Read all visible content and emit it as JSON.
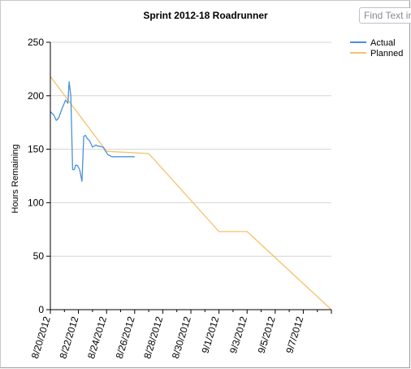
{
  "search": {
    "placeholder": "Find Text in"
  },
  "chart_data": {
    "type": "line",
    "title": "Sprint 2012-18 Roadrunner",
    "xlabel": "",
    "ylabel": "Hours Remaining",
    "ylim": [
      0,
      250
    ],
    "yticks": [
      0,
      50,
      100,
      150,
      200,
      250
    ],
    "xlim": [
      "2012-08-20",
      "2012-09-09"
    ],
    "xtick_labels": [
      "8/20/2012",
      "8/22/2012",
      "8/24/2012",
      "8/26/2012",
      "8/28/2012",
      "8/30/2012",
      "9/1/2012",
      "9/3/2012",
      "9/5/2012",
      "9/7/2012"
    ],
    "grid": "horizontal",
    "legend_position": "top-right",
    "colors": {
      "Actual": "#4a90d9",
      "Planned": "#f5c26b",
      "grid": "#d4d4d4",
      "axis": "#000000"
    },
    "series": [
      {
        "name": "Actual",
        "x": [
          "2012-08-20 00:00",
          "2012-08-20 06:00",
          "2012-08-20 10:00",
          "2012-08-20 14:00",
          "2012-08-20 20:00",
          "2012-08-21 02:00",
          "2012-08-21 06:00",
          "2012-08-21 08:00",
          "2012-08-21 11:00",
          "2012-08-21 14:00",
          "2012-08-21 16:00",
          "2012-08-21 17:00",
          "2012-08-21 19:00",
          "2012-08-21 22:00",
          "2012-08-22 02:00",
          "2012-08-22 06:00",
          "2012-08-22 09:00",
          "2012-08-22 12:00",
          "2012-08-22 14:00",
          "2012-08-22 15:00",
          "2012-08-22 19:00",
          "2012-08-23 00:00",
          "2012-08-23 06:00",
          "2012-08-23 08:00",
          "2012-08-23 10:00",
          "2012-08-23 11:00",
          "2012-08-23 18:00",
          "2012-08-24 02:00",
          "2012-08-24 09:00",
          "2012-08-24 14:00",
          "2012-08-24 16:00",
          "2012-08-24 18:00",
          "2012-08-25 02:00",
          "2012-08-25 12:00",
          "2012-08-26 00:00"
        ],
        "y": [
          185,
          182,
          177,
          179,
          188,
          196,
          193,
          213,
          200,
          131,
          131,
          131,
          135,
          135,
          131,
          120,
          162,
          163,
          161,
          160,
          158,
          152,
          154,
          153,
          153,
          153,
          152,
          145,
          143,
          143,
          143,
          143,
          143,
          143,
          143
        ]
      },
      {
        "name": "Planned",
        "x": [
          "2012-08-20",
          "2012-08-24",
          "2012-08-27",
          "2012-09-01",
          "2012-09-03",
          "2012-09-09"
        ],
        "y": [
          218,
          148,
          146,
          73,
          73,
          0
        ]
      }
    ]
  }
}
